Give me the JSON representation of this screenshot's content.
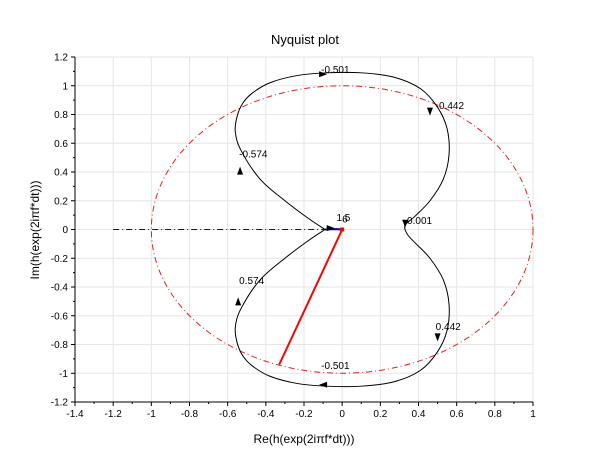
{
  "chart_data": {
    "type": "line",
    "title": "Nyquist plot",
    "xlabel": "Re(h(exp(2iπf*dt)))",
    "ylabel": "Im(h(exp(2iπf*dt)))",
    "xlim": [
      -1.4,
      1
    ],
    "ylim": [
      -1.2,
      1.2
    ],
    "xticks": [
      "-1.4",
      "-1.2",
      "-1",
      "-0.8",
      "-0.6",
      "-0.4",
      "-0.2",
      "0",
      "0.2",
      "0.4",
      "0.6",
      "0.8",
      "1"
    ],
    "yticks": [
      "-1.2",
      "-1",
      "-0.8",
      "-0.6",
      "-0.4",
      "-0.2",
      "0",
      "0.2",
      "0.4",
      "0.6",
      "0.8",
      "1",
      "1.2"
    ],
    "grid": true,
    "colors": {
      "curve": "#000000",
      "unit_circle": "#dd2222",
      "margin_line": "#0000cc",
      "vector": "#ff0000",
      "grid": "#e6e6e6"
    },
    "nyquist_curve": {
      "x": [
        -0.09,
        -0.18,
        -0.3,
        -0.43,
        -0.53,
        -0.56,
        -0.55,
        -0.52,
        -0.47,
        -0.38,
        -0.24,
        -0.08,
        0.1,
        0.27,
        0.41,
        0.5,
        0.55,
        0.56,
        0.53,
        0.46,
        0.38,
        0.33,
        0.34,
        0.38,
        0.46,
        0.53,
        0.56,
        0.55,
        0.5,
        0.41,
        0.27,
        0.1,
        -0.08,
        -0.24,
        -0.38,
        -0.47,
        -0.52,
        -0.55,
        -0.56,
        -0.53,
        -0.43,
        -0.3,
        -0.18,
        -0.09
      ],
      "y": [
        0.0,
        0.08,
        0.2,
        0.35,
        0.55,
        0.68,
        0.79,
        0.88,
        0.95,
        1.02,
        1.07,
        1.09,
        1.09,
        1.06,
        0.98,
        0.85,
        0.7,
        0.52,
        0.35,
        0.2,
        0.09,
        0.03,
        -0.03,
        -0.09,
        -0.2,
        -0.35,
        -0.52,
        -0.7,
        -0.85,
        -0.98,
        -1.06,
        -1.09,
        -1.09,
        -1.07,
        -1.02,
        -0.95,
        -0.88,
        -0.79,
        -0.68,
        -0.55,
        -0.35,
        -0.2,
        -0.08,
        0.0
      ]
    },
    "tail_curve": {
      "x": [
        -0.09,
        -0.03,
        0.0
      ],
      "y": [
        0.0,
        0.003,
        0.0
      ]
    },
    "unit_circle": {
      "center": [
        0,
        0
      ],
      "radius": 1
    },
    "margin_line": {
      "x": [
        -1.2,
        0
      ],
      "y": [
        0,
        0
      ]
    },
    "vector": {
      "x": [
        0,
        -0.33
      ],
      "y": [
        0,
        -0.94
      ]
    },
    "arrows": [
      {
        "x": -0.535,
        "y": 0.41,
        "dir": "up"
      },
      {
        "x": -0.1,
        "y": 1.08,
        "dir": "right"
      },
      {
        "x": 0.46,
        "y": 0.82,
        "dir": "down"
      },
      {
        "x": 0.33,
        "y": 0.04,
        "dir": "down"
      },
      {
        "x": -0.545,
        "y": -0.5,
        "dir": "up"
      },
      {
        "x": -0.1,
        "y": -1.08,
        "dir": "left"
      },
      {
        "x": 0.5,
        "y": -0.75,
        "dir": "down"
      },
      {
        "x": -0.06,
        "y": 0.01,
        "dir": "right"
      }
    ],
    "annotations": [
      {
        "text": "-0.501",
        "x": -0.11,
        "y": 1.09
      },
      {
        "text": "-0.442",
        "x": 0.49,
        "y": 0.84
      },
      {
        "text": "-0.574",
        "x": -0.54,
        "y": 0.5
      },
      {
        "text": "1.5",
        "x": -0.03,
        "y": 0.06
      },
      {
        "text": "6",
        "x": 0.0,
        "y": 0.05
      },
      {
        "text": "0.001",
        "x": 0.34,
        "y": 0.04
      },
      {
        "text": "0.574",
        "x": -0.54,
        "y": -0.38
      },
      {
        "text": "0.442",
        "x": 0.49,
        "y": -0.7
      },
      {
        "text": "-0.501",
        "x": -0.11,
        "y": -0.97
      }
    ]
  }
}
